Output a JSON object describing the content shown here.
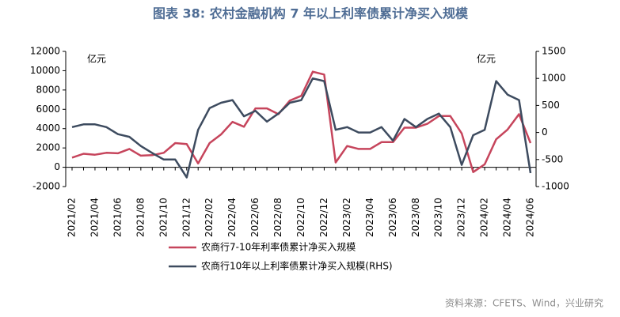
{
  "chart_data": {
    "type": "line",
    "title": "图表 38: 农村金融机构 7 年以上利率债累计净买入规模",
    "y_unit": "亿元",
    "y2_unit": "亿元",
    "source": "资料来源：CFETS、Wind，兴业研究",
    "categories": [
      "2021/02",
      null,
      "2021/04",
      null,
      "2021/06",
      null,
      "2021/08",
      null,
      "2021/10",
      null,
      "2021/12",
      null,
      "2022/02",
      null,
      "2022/04",
      null,
      "2022/06",
      null,
      "2022/08",
      null,
      "2022/10",
      null,
      "2022/12",
      null,
      "2023/02",
      null,
      "2023/04",
      null,
      "2023/06",
      null,
      "2023/08",
      null,
      "2023/10",
      null,
      "2023/12",
      null,
      "2024/02",
      null,
      "2024/04",
      null,
      "2024/06"
    ],
    "ylim": [
      -2000,
      12000
    ],
    "yticks": [
      -2000,
      0,
      2000,
      4000,
      6000,
      8000,
      10000,
      12000
    ],
    "y2lim": [
      -1000,
      1500
    ],
    "y2ticks": [
      -1000,
      -500,
      0,
      500,
      1000,
      1500
    ],
    "series": [
      {
        "name": "农商行7-10年利率债累计净买入规模",
        "color": "#c6455c",
        "values": [
          1000,
          1400,
          1300,
          1500,
          1450,
          1900,
          1200,
          1250,
          1500,
          2500,
          2400,
          400,
          2500,
          3400,
          4700,
          4200,
          6100,
          6100,
          5500,
          6900,
          7400,
          9900,
          9600,
          500,
          2200,
          1900,
          1900,
          2600,
          2600,
          4100,
          4100,
          4500,
          5300,
          5300,
          3500,
          -500,
          300,
          2900,
          3900,
          5500,
          2500
        ]
      },
      {
        "name": "农商行10年以上利率债累计净买入规模(RHS)",
        "color": "#3d4b5f",
        "axis": "y2",
        "values": [
          100,
          150,
          150,
          100,
          -30,
          -80,
          -250,
          -380,
          -500,
          -500,
          -830,
          50,
          450,
          550,
          600,
          300,
          400,
          200,
          350,
          550,
          600,
          1000,
          950,
          50,
          100,
          0,
          0,
          100,
          -150,
          250,
          100,
          250,
          350,
          100,
          -600,
          -50,
          50,
          950,
          700,
          600,
          -750
        ]
      }
    ]
  }
}
